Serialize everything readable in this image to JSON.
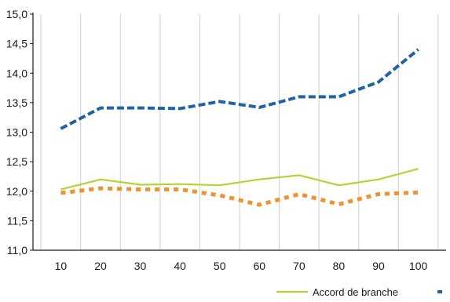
{
  "chart_data": {
    "type": "line",
    "x": [
      10,
      20,
      30,
      40,
      50,
      60,
      70,
      80,
      90,
      100
    ],
    "xlim": [
      3,
      107
    ],
    "ylim": [
      11.0,
      15.0
    ],
    "yticks": [
      "11,0",
      "11,5",
      "12,0",
      "12,5",
      "13,0",
      "13,5",
      "14,0",
      "14,5",
      "15,0"
    ],
    "ytick_values": [
      11.0,
      11.5,
      12.0,
      12.5,
      13.0,
      13.5,
      14.0,
      14.5,
      15.0
    ],
    "xticks": [
      "10",
      "20",
      "30",
      "40",
      "50",
      "60",
      "70",
      "80",
      "90",
      "100"
    ],
    "grid": "vertical",
    "legend_position": "bottom-right",
    "series": [
      {
        "name": "Accord de branche",
        "style": "solid",
        "color": "#b5d334",
        "values": [
          12.03,
          12.2,
          12.11,
          12.12,
          12.1,
          12.2,
          12.27,
          12.1,
          12.2,
          12.38
        ]
      },
      {
        "style": "dashed",
        "color": "#1e63a8",
        "values": [
          13.06,
          13.41,
          13.41,
          13.4,
          13.52,
          13.42,
          13.6,
          13.6,
          13.85,
          14.4
        ]
      },
      {
        "style": "dotted",
        "color": "#f0932f",
        "values": [
          11.97,
          12.05,
          12.03,
          12.03,
          11.93,
          11.77,
          11.95,
          11.78,
          11.95,
          11.98
        ]
      }
    ]
  }
}
